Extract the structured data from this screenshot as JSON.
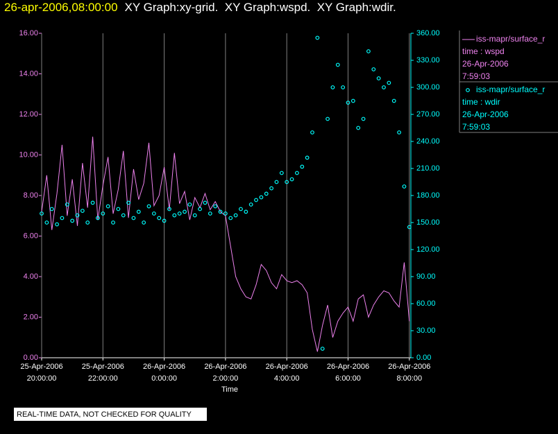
{
  "chart_data": {
    "type": "line-scatter",
    "title": "26-apr-2006,08:00:00",
    "subtitle": "XY Graph:xy-grid.  XY Graph:wspd.  XY Graph:wdir.",
    "xlabel": "Time",
    "footer": "REAL-TIME DATA, NOT CHECKED FOR QUALITY",
    "grid": true,
    "background": "#000000",
    "x": [
      "2006-04-25T20:00:00",
      "2006-04-25T20:10:00",
      "2006-04-25T20:20:00",
      "2006-04-25T20:30:00",
      "2006-04-25T20:40:00",
      "2006-04-25T20:50:00",
      "2006-04-25T21:00:00",
      "2006-04-25T21:10:00",
      "2006-04-25T21:20:00",
      "2006-04-25T21:30:00",
      "2006-04-25T21:40:00",
      "2006-04-25T21:50:00",
      "2006-04-25T22:00:00",
      "2006-04-25T22:10:00",
      "2006-04-25T22:20:00",
      "2006-04-25T22:30:00",
      "2006-04-25T22:40:00",
      "2006-04-25T22:50:00",
      "2006-04-25T23:00:00",
      "2006-04-25T23:10:00",
      "2006-04-25T23:20:00",
      "2006-04-25T23:30:00",
      "2006-04-25T23:40:00",
      "2006-04-25T23:50:00",
      "2006-04-26T00:00:00",
      "2006-04-26T00:10:00",
      "2006-04-26T00:20:00",
      "2006-04-26T00:30:00",
      "2006-04-26T00:40:00",
      "2006-04-26T00:50:00",
      "2006-04-26T01:00:00",
      "2006-04-26T01:10:00",
      "2006-04-26T01:20:00",
      "2006-04-26T01:30:00",
      "2006-04-26T01:40:00",
      "2006-04-26T01:50:00",
      "2006-04-26T02:00:00",
      "2006-04-26T02:10:00",
      "2006-04-26T02:20:00",
      "2006-04-26T02:30:00",
      "2006-04-26T02:40:00",
      "2006-04-26T02:50:00",
      "2006-04-26T03:00:00",
      "2006-04-26T03:10:00",
      "2006-04-26T03:20:00",
      "2006-04-26T03:30:00",
      "2006-04-26T03:40:00",
      "2006-04-26T03:50:00",
      "2006-04-26T04:00:00",
      "2006-04-26T04:10:00",
      "2006-04-26T04:20:00",
      "2006-04-26T04:30:00",
      "2006-04-26T04:40:00",
      "2006-04-26T04:50:00",
      "2006-04-26T05:00:00",
      "2006-04-26T05:10:00",
      "2006-04-26T05:20:00",
      "2006-04-26T05:30:00",
      "2006-04-26T05:40:00",
      "2006-04-26T05:50:00",
      "2006-04-26T06:00:00",
      "2006-04-26T06:10:00",
      "2006-04-26T06:20:00",
      "2006-04-26T06:30:00",
      "2006-04-26T06:40:00",
      "2006-04-26T06:50:00",
      "2006-04-26T07:00:00",
      "2006-04-26T07:10:00",
      "2006-04-26T07:20:00",
      "2006-04-26T07:30:00",
      "2006-04-26T07:40:00",
      "2006-04-26T07:50:00",
      "2006-04-26T08:00:00"
    ],
    "xlim": [
      "2006-04-25T20:00:00",
      "2006-04-26T08:03:00"
    ],
    "xticks": [
      {
        "value": "2006-04-25T20:00:00",
        "label": "25-Apr-2006\n20:00:00"
      },
      {
        "value": "2006-04-25T22:00:00",
        "label": "25-Apr-2006\n22:00:00"
      },
      {
        "value": "2006-04-26T00:00:00",
        "label": "26-Apr-2006\n0:00:00"
      },
      {
        "value": "2006-04-26T02:00:00",
        "label": "26-Apr-2006\n2:00:00"
      },
      {
        "value": "2006-04-26T04:00:00",
        "label": "26-Apr-2006\n4:00:00"
      },
      {
        "value": "2006-04-26T06:00:00",
        "label": "26-Apr-2006\n6:00:00"
      },
      {
        "value": "2006-04-26T08:00:00",
        "label": "26-Apr-2006\n8:00:00"
      }
    ],
    "ylim": [
      0,
      16
    ],
    "yticks": [
      {
        "value": 0,
        "label": "0.00"
      },
      {
        "value": 2,
        "label": "2.00"
      },
      {
        "value": 4,
        "label": "4.00"
      },
      {
        "value": 6,
        "label": "6.00"
      },
      {
        "value": 8,
        "label": "8.00"
      },
      {
        "value": 10,
        "label": "10.00"
      },
      {
        "value": 12,
        "label": "12.00"
      },
      {
        "value": 14,
        "label": "14.00"
      },
      {
        "value": 16,
        "label": "16.00"
      }
    ],
    "y2lim": [
      0,
      360
    ],
    "y2ticks": [
      {
        "value": 0,
        "label": "0.00"
      },
      {
        "value": 30,
        "label": "30.00"
      },
      {
        "value": 60,
        "label": "60.00"
      },
      {
        "value": 90,
        "label": "90.00"
      },
      {
        "value": 120,
        "label": "120.00"
      },
      {
        "value": 150,
        "label": "150.00"
      },
      {
        "value": 180,
        "label": "180.00"
      },
      {
        "value": 210,
        "label": "210.00"
      },
      {
        "value": 240,
        "label": "240.00"
      },
      {
        "value": 270,
        "label": "270.00"
      },
      {
        "value": 300,
        "label": "300.00"
      },
      {
        "value": 330,
        "label": "330.00"
      },
      {
        "value": 360,
        "label": "360.00"
      }
    ],
    "series": [
      {
        "name": "iss-mapr/surface_r",
        "legend_lines": [
          "time : wspd",
          "26-Apr-2006",
          "7:59:03"
        ],
        "color": "#ee82ee",
        "kind": "line",
        "values": [
          7.2,
          9.0,
          6.3,
          8.1,
          10.5,
          7.0,
          8.8,
          6.5,
          9.6,
          7.4,
          10.9,
          6.8,
          8.5,
          9.9,
          7.1,
          8.3,
          10.2,
          6.9,
          9.3,
          7.8,
          8.6,
          10.6,
          7.5,
          8.0,
          9.4,
          7.3,
          10.1,
          7.6,
          8.2,
          6.8,
          7.9,
          7.4,
          8.1,
          7.3,
          7.7,
          7.2,
          7.0,
          5.5,
          4.0,
          3.4,
          3.0,
          2.9,
          3.6,
          4.6,
          4.3,
          3.7,
          3.4,
          4.1,
          3.8,
          3.7,
          3.8,
          3.6,
          3.2,
          1.4,
          0.3,
          1.6,
          2.6,
          1.0,
          1.8,
          2.2,
          2.5,
          1.8,
          2.9,
          3.1,
          2.0,
          2.6,
          3.0,
          3.3,
          3.2,
          2.8,
          2.5,
          4.7,
          1.8
        ]
      },
      {
        "name": "iss-mapr/surface_r",
        "legend_lines": [
          "time : wdir",
          "26-Apr-2006",
          "7:59:03"
        ],
        "color": "#00ffff",
        "kind": "scatter",
        "axis": "y2",
        "values": [
          160,
          150,
          165,
          148,
          155,
          170,
          152,
          158,
          163,
          150,
          172,
          155,
          160,
          168,
          150,
          165,
          158,
          172,
          155,
          162,
          150,
          168,
          160,
          155,
          152,
          165,
          158,
          160,
          162,
          170,
          158,
          165,
          172,
          160,
          168,
          162,
          160,
          155,
          158,
          165,
          162,
          170,
          175,
          178,
          182,
          188,
          195,
          205,
          195,
          198,
          205,
          212,
          222,
          250,
          355,
          10,
          265,
          300,
          325,
          300,
          283,
          285,
          255,
          265,
          340,
          320,
          310,
          300,
          305,
          285,
          250,
          190,
          145
        ]
      }
    ]
  }
}
